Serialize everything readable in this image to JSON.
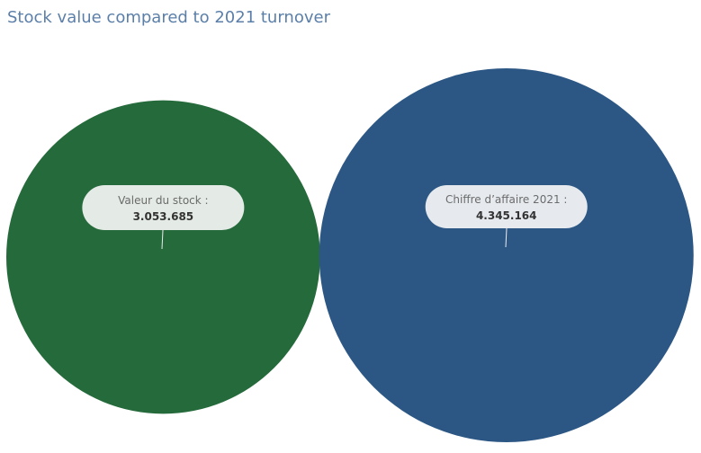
{
  "title": "Stock value compared to 2021 turnover",
  "chart_data": {
    "type": "bubble",
    "title": "Stock value compared to 2021 turnover",
    "items": [
      {
        "label": "Valeur du stock :",
        "value_text": "3.053.685",
        "value": 3053685,
        "color": "#256a3b"
      },
      {
        "label": "Chiffre d’affaire 2021 :",
        "value_text": "4.345.164",
        "value": 4345164,
        "color": "#2c5784"
      }
    ]
  }
}
